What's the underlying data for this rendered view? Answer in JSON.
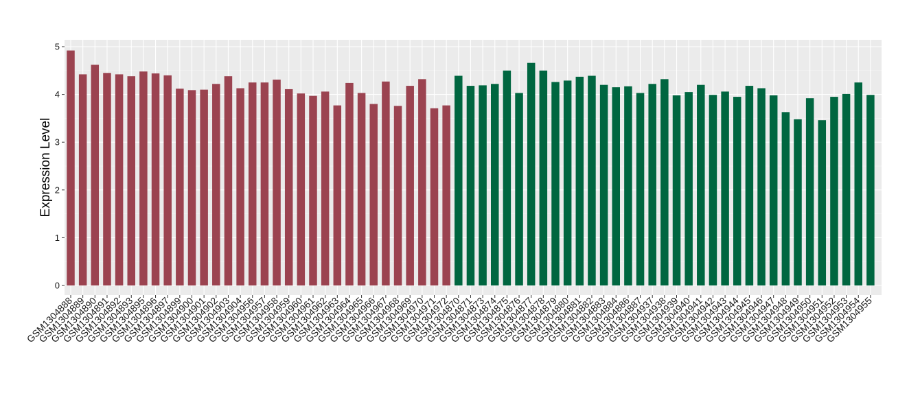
{
  "chart_data": {
    "type": "bar",
    "title": "",
    "xlabel": "",
    "ylabel": "Expression Level",
    "ylim": [
      0,
      5.05
    ],
    "yticks": [
      0,
      1,
      2,
      3,
      4,
      5
    ],
    "grid": true,
    "legend": "none",
    "colors": {
      "panel_background": "#ebebeb",
      "grid_major": "#ffffff",
      "group_1": "#9b4350",
      "group_2": "#006640"
    },
    "categories": [
      "GSM1304888",
      "GSM1304889",
      "GSM1304890",
      "GSM1304891",
      "GSM1304892",
      "GSM1304893",
      "GSM1304895",
      "GSM1304896",
      "GSM1304897",
      "GSM1304899",
      "GSM1304900",
      "GSM1304901",
      "GSM1304902",
      "GSM1304903",
      "GSM1304904",
      "GSM1304956",
      "GSM1304957",
      "GSM1304958",
      "GSM1304959",
      "GSM1304960",
      "GSM1304961",
      "GSM1304962",
      "GSM1304963",
      "GSM1304964",
      "GSM1304965",
      "GSM1304966",
      "GSM1304967",
      "GSM1304968",
      "GSM1304969",
      "GSM1304970",
      "GSM1304971",
      "GSM1304972",
      "GSM1304870",
      "GSM1304871",
      "GSM1304873",
      "GSM1304874",
      "GSM1304875",
      "GSM1304876",
      "GSM1304877",
      "GSM1304878",
      "GSM1304879",
      "GSM1304880",
      "GSM1304881",
      "GSM1304882",
      "GSM1304883",
      "GSM1304884",
      "GSM1304886",
      "GSM1304887",
      "GSM1304937",
      "GSM1304938",
      "GSM1304939",
      "GSM1304940",
      "GSM1304941",
      "GSM1304942",
      "GSM1304943",
      "GSM1304944",
      "GSM1304945",
      "GSM1304946",
      "GSM1304947",
      "GSM1304948",
      "GSM1304949",
      "GSM1304950",
      "GSM1304951",
      "GSM1304952",
      "GSM1304953",
      "GSM1304954",
      "GSM1304955"
    ],
    "values": [
      4.92,
      4.42,
      4.62,
      4.45,
      4.42,
      4.38,
      4.48,
      4.44,
      4.4,
      4.12,
      4.09,
      4.1,
      4.22,
      4.38,
      4.13,
      4.25,
      4.25,
      4.31,
      4.11,
      4.02,
      3.97,
      4.06,
      3.77,
      4.24,
      4.03,
      3.8,
      4.27,
      3.76,
      4.18,
      4.32,
      3.71,
      3.77,
      4.39,
      4.18,
      4.19,
      4.22,
      4.5,
      4.03,
      4.66,
      4.5,
      4.26,
      4.29,
      4.37,
      4.39,
      4.2,
      4.15,
      4.17,
      4.03,
      4.22,
      4.32,
      3.98,
      4.05,
      4.2,
      3.99,
      4.06,
      3.95,
      4.18,
      4.13,
      3.98,
      3.63,
      3.48,
      3.92,
      3.46,
      3.95,
      4.01,
      4.25,
      3.99
    ],
    "groups": [
      1,
      1,
      1,
      1,
      1,
      1,
      1,
      1,
      1,
      1,
      1,
      1,
      1,
      1,
      1,
      1,
      1,
      1,
      1,
      1,
      1,
      1,
      1,
      1,
      1,
      1,
      1,
      1,
      1,
      1,
      1,
      1,
      2,
      2,
      2,
      2,
      2,
      2,
      2,
      2,
      2,
      2,
      2,
      2,
      2,
      2,
      2,
      2,
      2,
      2,
      2,
      2,
      2,
      2,
      2,
      2,
      2,
      2,
      2,
      2,
      2,
      2,
      2,
      2,
      2,
      2,
      2
    ]
  }
}
